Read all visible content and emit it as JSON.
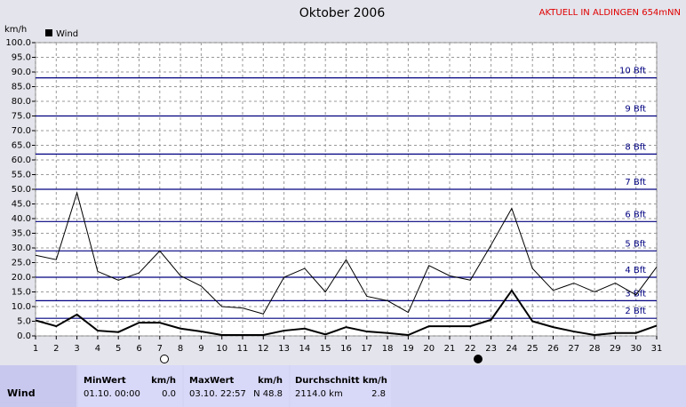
{
  "chart_data": {
    "type": "line",
    "title": "Oktober 2006",
    "station": "AKTUELL IN ALDINGEN 654mNN",
    "y_label": "km/h",
    "x": [
      1,
      2,
      3,
      4,
      5,
      6,
      7,
      8,
      9,
      10,
      11,
      12,
      13,
      14,
      15,
      16,
      17,
      18,
      19,
      20,
      21,
      22,
      23,
      24,
      25,
      26,
      27,
      28,
      29,
      30,
      31
    ],
    "xlim": [
      1,
      31
    ],
    "ylim": [
      0,
      100
    ],
    "yticks": [
      {
        "value": 0,
        "label": "0.0"
      },
      {
        "value": 5,
        "label": "5.0"
      },
      {
        "value": 10,
        "label": "10.0"
      },
      {
        "value": 15,
        "label": "15.0"
      },
      {
        "value": 20,
        "label": "20.0"
      },
      {
        "value": 25,
        "label": "25.0"
      },
      {
        "value": 30,
        "label": "30.0"
      },
      {
        "value": 35,
        "label": "35.0"
      },
      {
        "value": 40,
        "label": "40.0"
      },
      {
        "value": 45,
        "label": "45.0"
      },
      {
        "value": 50,
        "label": "50.0"
      },
      {
        "value": 55,
        "label": "55.0"
      },
      {
        "value": 60,
        "label": "60.0"
      },
      {
        "value": 65,
        "label": "65.0"
      },
      {
        "value": 70,
        "label": "70.0"
      },
      {
        "value": 75,
        "label": "75.0"
      },
      {
        "value": 80,
        "label": "80.0"
      },
      {
        "value": 85,
        "label": "85.0"
      },
      {
        "value": 90,
        "label": "90.0"
      },
      {
        "value": 95,
        "label": "95.0"
      },
      {
        "value": 100,
        "label": "100.0"
      }
    ],
    "grid": true,
    "beaufort_lines": [
      {
        "value": 6,
        "label": "2 Bft"
      },
      {
        "value": 12,
        "label": "3 Bft"
      },
      {
        "value": 20,
        "label": "4 Bft"
      },
      {
        "value": 29,
        "label": "5 Bft"
      },
      {
        "value": 39,
        "label": "6 Bft"
      },
      {
        "value": 50,
        "label": "7 Bft"
      },
      {
        "value": 62,
        "label": "8 Bft"
      },
      {
        "value": 75,
        "label": "9 Bft"
      },
      {
        "value": 88,
        "label": "10 Bft"
      }
    ],
    "beaufort_color": "#000080",
    "series": [
      {
        "name": "Wind",
        "color": "#000000",
        "width": 2,
        "values": [
          5.3,
          3.3,
          7.3,
          1.8,
          1.3,
          4.5,
          4.5,
          2.5,
          1.5,
          0.3,
          0.3,
          0.3,
          1.8,
          2.5,
          0.5,
          3,
          1.5,
          1,
          0.3,
          3.3,
          3.3,
          3.3,
          5.5,
          15.5,
          5,
          3,
          1.5,
          0.3,
          1,
          1,
          3.5
        ]
      },
      {
        "color": "#000000",
        "width": 1,
        "values": [
          27.5,
          26,
          48.8,
          22,
          19,
          21.5,
          29,
          20.5,
          17,
          10,
          9.5,
          7.5,
          20,
          23,
          15,
          26,
          13.5,
          12,
          8,
          24,
          20.5,
          19,
          31,
          43.5,
          23,
          15.5,
          18,
          15,
          18,
          14,
          23.5
        ]
      }
    ]
  },
  "summary": {
    "row_label": "Wind",
    "columns": [
      {
        "header": "MinWert",
        "unit": "km/h",
        "date": "01.10.  00:00",
        "value": "0.0"
      },
      {
        "header": "MaxWert",
        "unit": "km/h",
        "date": "03.10.  22:57",
        "value": "N 48.8"
      },
      {
        "header": "Durchschnitt km/h",
        "date": "2114.0 km",
        "value": "2.8"
      }
    ]
  }
}
